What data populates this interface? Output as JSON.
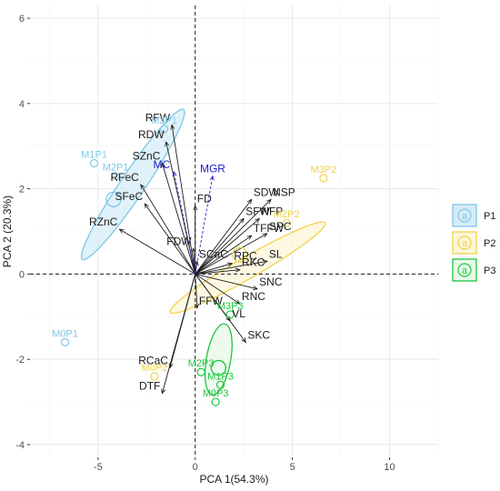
{
  "chart_data": {
    "type": "scatter",
    "subtype": "pca-biplot",
    "xlabel": "PCA 1(54.3%)",
    "ylabel": "PCA 2 (20.3%)",
    "xlim": [
      -8.5,
      12.5
    ],
    "ylim": [
      -4.3,
      6.3
    ],
    "xticks": [
      -5,
      0,
      5,
      10
    ],
    "yticks": [
      -4,
      -2,
      0,
      2,
      4,
      6
    ],
    "grid": true,
    "reference_lines": {
      "x": 0,
      "y": 0,
      "style": "dashed"
    },
    "colors": {
      "P1": "#7ec8e8",
      "P2": "#f0d24a",
      "P3": "#19c83c",
      "supp": "#2323cc",
      "arrow": "#1a1a1a"
    },
    "groups": [
      {
        "name": "P1",
        "color": "#7ec8e8",
        "fill": "#d6ecf7",
        "ellipse": {
          "cx": -3.2,
          "cy": 2.1,
          "a": 9.3,
          "b": 1.25,
          "angle_deg": 56
        },
        "points": [
          {
            "label": "M3P1",
            "x": -1.6,
            "y": 3.4
          },
          {
            "label": "M1P1",
            "x": -5.2,
            "y": 2.6
          },
          {
            "label": "M2P1",
            "x": -4.1,
            "y": 2.3
          },
          {
            "label": "M0P1",
            "x": -6.7,
            "y": -1.6
          }
        ],
        "mean": {
          "x": -4.2,
          "y": 1.75
        }
      },
      {
        "name": "P2",
        "color": "#f0d24a",
        "fill": "#fdf6d8",
        "ellipse": {
          "cx": 2.7,
          "cy": 0.15,
          "a": 9.2,
          "b": 1.1,
          "angle_deg": 30
        },
        "points": [
          {
            "label": "M3P2",
            "x": 6.6,
            "y": 2.25
          },
          {
            "label": "M2P2",
            "x": 4.7,
            "y": 1.2
          },
          {
            "label": "M0P2",
            "x": -2.1,
            "y": -2.4
          }
        ],
        "mean": {
          "x": 2.3,
          "y": 0.45
        }
      },
      {
        "name": "P3",
        "color": "#19c83c",
        "fill": "#e8f8e8",
        "ellipse": {
          "cx": 1.2,
          "cy": -2.0,
          "a": 3.7,
          "b": 1.25,
          "angle_deg": 80
        },
        "points": [
          {
            "label": "M3P3",
            "x": 1.8,
            "y": -0.95
          },
          {
            "label": "M2P3",
            "x": 0.3,
            "y": -2.3
          },
          {
            "label": "M1P3",
            "x": 1.3,
            "y": -2.6
          },
          {
            "label": "M0P3",
            "x": 1.05,
            "y": -3.0
          }
        ],
        "mean": {
          "x": 1.2,
          "y": -2.2
        }
      }
    ],
    "variables": [
      {
        "name": "RFW",
        "x": -1.2,
        "y": 3.5
      },
      {
        "name": "RDW",
        "x": -1.5,
        "y": 3.1
      },
      {
        "name": "SZnC",
        "x": -1.7,
        "y": 2.6
      },
      {
        "name": "RFeC",
        "x": -2.8,
        "y": 2.1
      },
      {
        "name": "SFeC",
        "x": -2.6,
        "y": 1.65
      },
      {
        "name": "RZnC",
        "x": -3.9,
        "y": 1.05
      },
      {
        "name": "FD",
        "x": 0.0,
        "y": 1.6
      },
      {
        "name": "SDW",
        "x": 2.9,
        "y": 1.75
      },
      {
        "name": "NSP",
        "x": 3.9,
        "y": 1.75
      },
      {
        "name": "SFW",
        "x": 2.5,
        "y": 1.3
      },
      {
        "name": "NFP",
        "x": 3.3,
        "y": 1.3
      },
      {
        "name": "TFFW",
        "x": 2.9,
        "y": 0.9
      },
      {
        "name": "SPC",
        "x": 3.7,
        "y": 0.95
      },
      {
        "name": "FDW",
        "x": -0.1,
        "y": 0.6
      },
      {
        "name": "SCaC",
        "x": 0.1,
        "y": 0.3
      },
      {
        "name": "SL",
        "x": 3.7,
        "y": 0.3
      },
      {
        "name": "RKC",
        "x": 2.3,
        "y": 0.1
      },
      {
        "name": "RPC",
        "x": 1.9,
        "y": 0.25
      },
      {
        "name": "SNC",
        "x": 3.2,
        "y": -0.35
      },
      {
        "name": "RNC",
        "x": 2.3,
        "y": -0.7
      },
      {
        "name": "FFW",
        "x": 0.1,
        "y": -0.8
      },
      {
        "name": "VL",
        "x": 1.8,
        "y": -1.1
      },
      {
        "name": "SKC",
        "x": 2.6,
        "y": -1.6
      },
      {
        "name": "RCaC",
        "x": -1.3,
        "y": -2.2
      },
      {
        "name": "DTF",
        "x": -1.7,
        "y": -2.8
      }
    ],
    "supplementary_variables": [
      {
        "name": "MC",
        "x": -1.1,
        "y": 2.4
      },
      {
        "name": "MGR",
        "x": 0.9,
        "y": 2.3
      }
    ],
    "legend": {
      "position": "right",
      "symbol": "a",
      "entries": [
        "P1",
        "P2",
        "P3"
      ]
    }
  }
}
